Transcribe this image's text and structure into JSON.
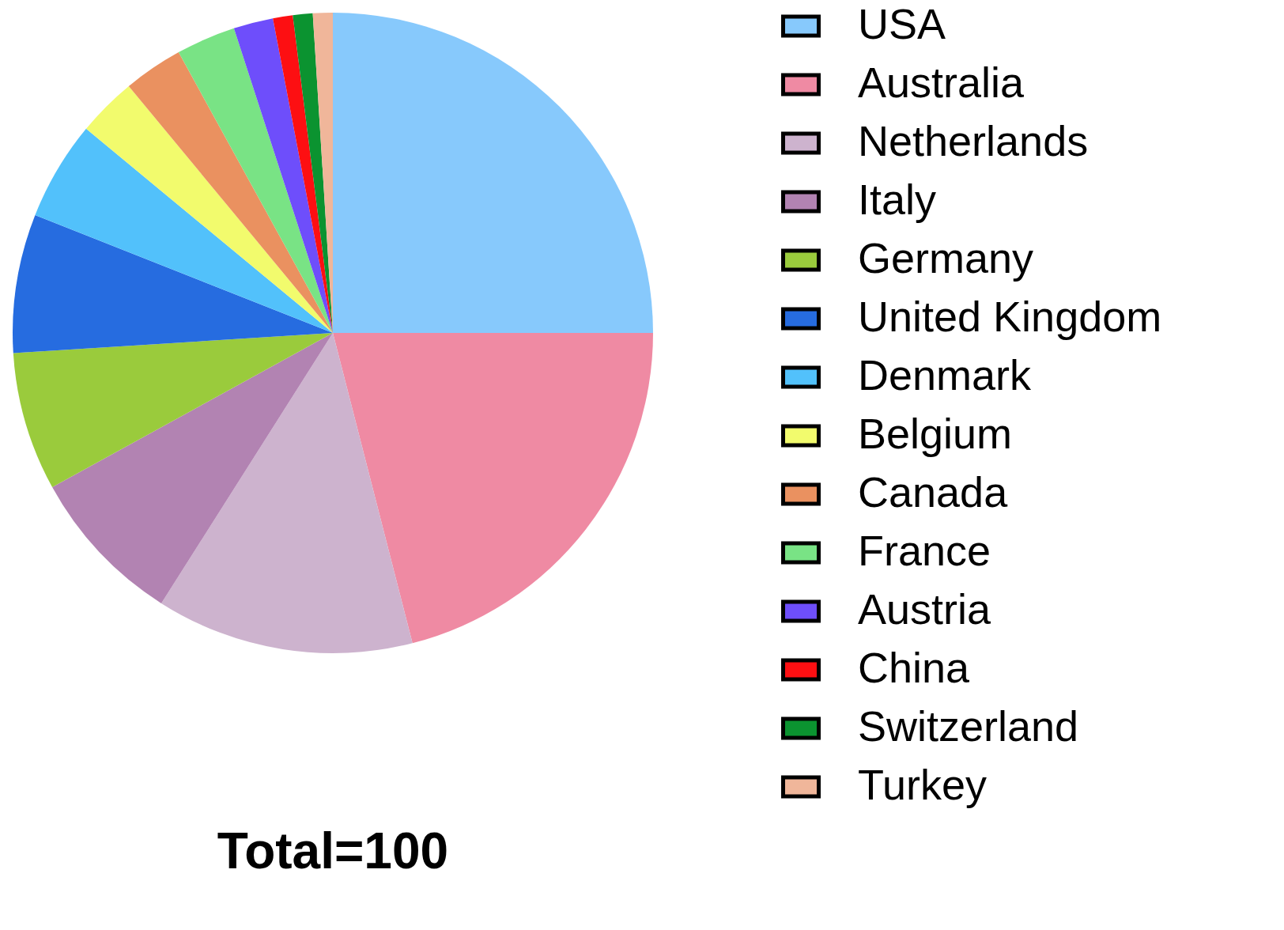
{
  "chart_data": {
    "type": "pie",
    "title": "Total=100",
    "categories": [
      "USA",
      "Australia",
      "Netherlands",
      "Italy",
      "Germany",
      "United Kingdom",
      "Denmark",
      "Belgium",
      "Canada",
      "France",
      "Austria",
      "China",
      "Switzerland",
      "Turkey"
    ],
    "values": [
      25,
      21,
      13,
      8,
      7,
      7,
      5,
      3,
      3,
      3,
      2,
      1,
      1,
      1
    ],
    "colors": [
      "#87c9fc",
      "#ef8aa3",
      "#cdb3ce",
      "#b283b2",
      "#9acb3c",
      "#266ce0",
      "#52c1fb",
      "#f2fb6d",
      "#ea9160",
      "#79e385",
      "#6e4efb",
      "#fd0f12",
      "#0b9330",
      "#f0b69a"
    ],
    "legend": "right"
  }
}
